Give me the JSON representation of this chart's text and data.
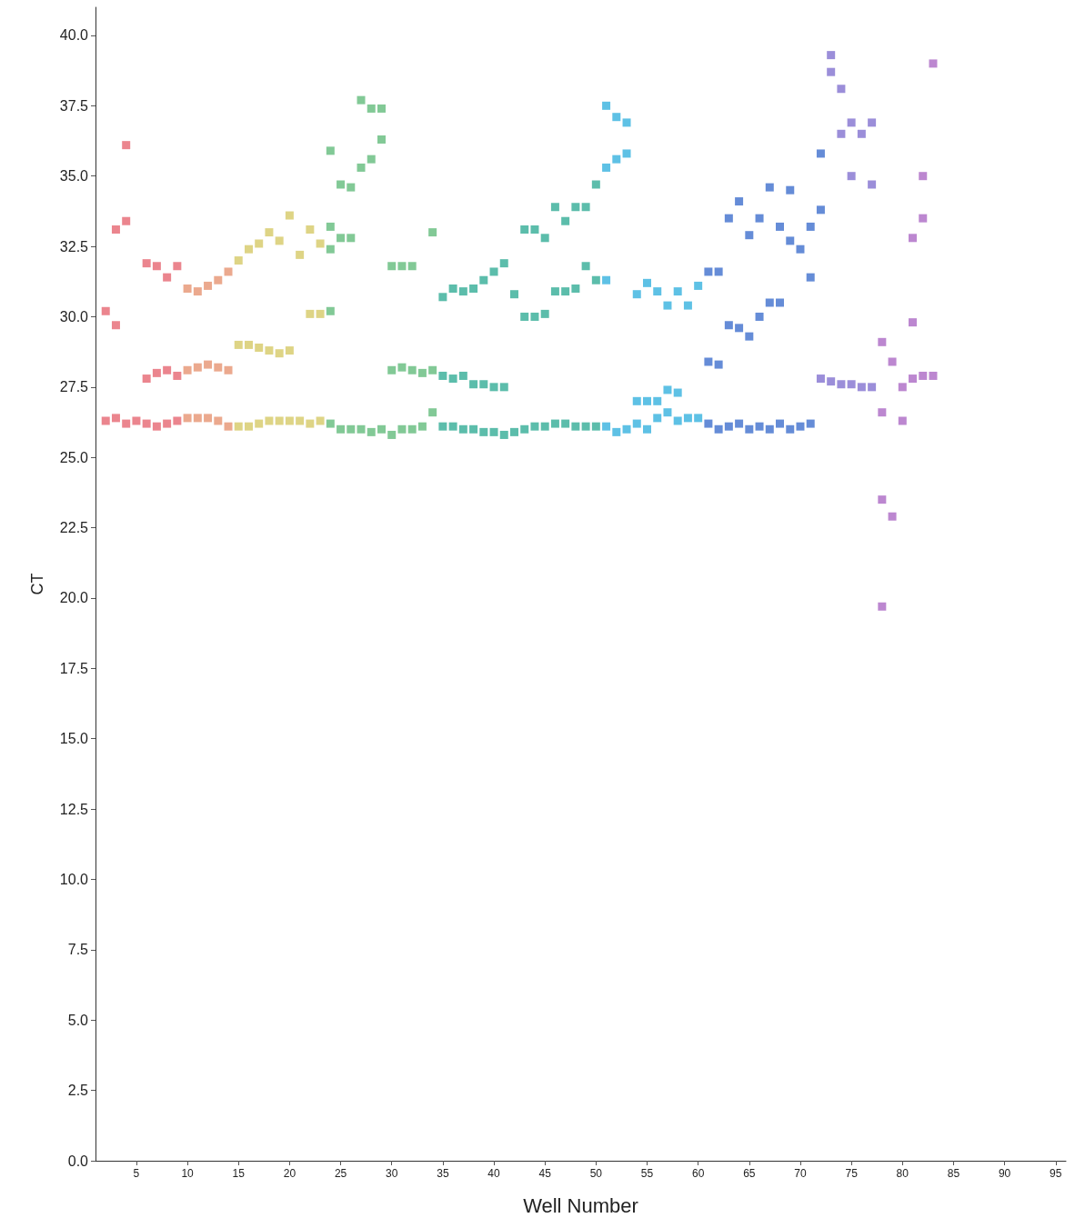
{
  "chart_data": {
    "type": "scatter",
    "xlabel": "Well Number",
    "ylabel": "CT",
    "marker": "square",
    "xlim": [
      1,
      96
    ],
    "xticks": [
      5,
      10,
      15,
      20,
      25,
      30,
      35,
      40,
      45,
      50,
      55,
      60,
      65,
      70,
      75,
      80,
      85,
      90,
      95
    ],
    "ylim": [
      0,
      41
    ],
    "yticks": [
      {
        "value": 0,
        "label": "0.0"
      },
      {
        "value": 2.5,
        "label": "2.5"
      },
      {
        "value": 5,
        "label": "5.0"
      },
      {
        "value": 7.5,
        "label": "7.5"
      },
      {
        "value": 10,
        "label": "10.0"
      },
      {
        "value": 12.5,
        "label": "12.5"
      },
      {
        "value": 15,
        "label": "15.0"
      },
      {
        "value": 17.5,
        "label": "17.5"
      },
      {
        "value": 20,
        "label": "20.0"
      },
      {
        "value": 22.5,
        "label": "22.5"
      },
      {
        "value": 25,
        "label": "25.0"
      },
      {
        "value": 27.5,
        "label": "27.5"
      },
      {
        "value": 30,
        "label": "30.0"
      },
      {
        "value": 32.5,
        "label": "32.5"
      },
      {
        "value": 35,
        "label": "35.0"
      },
      {
        "value": 37.5,
        "label": "37.5"
      },
      {
        "value": 40,
        "label": "40.0"
      }
    ],
    "series": [
      {
        "color": "#e8707a",
        "x": [
          2,
          2,
          3,
          3,
          3,
          4,
          4,
          4,
          5,
          6,
          6,
          6,
          7,
          7,
          7,
          8,
          8,
          8,
          9,
          9,
          9
        ],
        "values": [
          26.3,
          30.2,
          26.4,
          29.7,
          33.1,
          26.2,
          33.4,
          36.1,
          26.3,
          26.2,
          31.9,
          27.8,
          26.1,
          31.8,
          28.0,
          26.2,
          31.4,
          28.1,
          26.3,
          31.8,
          27.9
        ]
      },
      {
        "color": "#e89a7a",
        "x": [
          10,
          10,
          10,
          11,
          11,
          11,
          12,
          12,
          12,
          13,
          13,
          13,
          14,
          14,
          14
        ],
        "values": [
          26.4,
          31.0,
          28.1,
          26.4,
          30.9,
          28.2,
          26.4,
          31.1,
          28.3,
          26.3,
          31.3,
          28.2,
          26.1,
          31.6,
          28.1
        ]
      },
      {
        "color": "#d8cc70",
        "x": [
          15,
          15,
          15,
          16,
          16,
          16,
          17,
          17,
          17,
          18,
          18,
          18,
          19,
          19,
          19,
          20,
          20,
          20,
          21,
          21,
          22,
          22,
          22,
          23,
          23,
          23
        ],
        "values": [
          26.1,
          32.0,
          29.0,
          26.1,
          32.4,
          29.0,
          26.2,
          32.6,
          28.9,
          26.3,
          33.0,
          28.8,
          26.3,
          32.7,
          28.7,
          26.3,
          33.6,
          28.8,
          26.3,
          32.2,
          26.2,
          33.1,
          30.1,
          26.3,
          32.6,
          30.1
        ]
      },
      {
        "color": "#6cc084",
        "x": [
          24,
          24,
          24,
          24,
          24,
          25,
          25,
          25,
          26,
          26,
          26,
          27,
          27,
          27,
          28,
          28,
          28,
          29,
          29,
          29,
          30,
          30,
          30,
          31,
          31,
          31,
          32,
          32,
          32,
          33,
          33,
          34,
          34,
          34
        ],
        "values": [
          26.2,
          32.4,
          30.2,
          35.9,
          33.2,
          26.0,
          34.7,
          32.8,
          26.0,
          34.6,
          32.8,
          26.0,
          35.3,
          37.7,
          25.9,
          35.6,
          37.4,
          26.0,
          37.4,
          36.3,
          25.8,
          31.8,
          28.1,
          26.0,
          31.8,
          28.2,
          26.0,
          31.8,
          28.1,
          26.1,
          28.0,
          26.6,
          33.0,
          28.1
        ]
      },
      {
        "color": "#3fb29c",
        "x": [
          35,
          35,
          35,
          36,
          36,
          36,
          37,
          37,
          37,
          38,
          38,
          38,
          39,
          39,
          39,
          40,
          40,
          40,
          41,
          41,
          41,
          42,
          42,
          43,
          43,
          43,
          44,
          44,
          44,
          45,
          45,
          45,
          46,
          46,
          46,
          47,
          47,
          47,
          48,
          48,
          48,
          49,
          49,
          49,
          50,
          50,
          50
        ],
        "values": [
          26.1,
          30.7,
          27.9,
          26.1,
          31.0,
          27.8,
          26.0,
          30.9,
          27.9,
          26.0,
          31.0,
          27.6,
          25.9,
          31.3,
          27.6,
          25.9,
          31.6,
          27.5,
          25.8,
          31.9,
          27.5,
          25.9,
          30.8,
          26.0,
          30.0,
          33.1,
          26.1,
          30.0,
          33.1,
          26.1,
          30.1,
          32.8,
          26.2,
          33.9,
          30.9,
          26.2,
          33.4,
          30.9,
          26.1,
          33.9,
          31.0,
          26.1,
          33.9,
          31.8,
          26.1,
          34.7,
          31.3
        ]
      },
      {
        "color": "#42b6e0",
        "x": [
          51,
          51,
          51,
          51,
          52,
          52,
          52,
          53,
          53,
          53,
          54,
          54,
          54,
          55,
          55,
          55,
          56,
          56,
          56,
          57,
          57,
          57,
          58,
          58,
          58,
          59,
          59,
          60,
          60
        ],
        "values": [
          26.1,
          37.5,
          35.3,
          31.3,
          25.9,
          37.1,
          35.6,
          26.0,
          36.9,
          35.8,
          26.2,
          30.8,
          27.0,
          26.0,
          31.2,
          27.0,
          26.4,
          30.9,
          27.0,
          26.6,
          30.4,
          27.4,
          26.3,
          30.9,
          27.3,
          26.4,
          30.4,
          26.4,
          31.1
        ]
      },
      {
        "color": "#4a78d0",
        "x": [
          61,
          61,
          61,
          62,
          62,
          62,
          63,
          63,
          63,
          64,
          64,
          64,
          65,
          65,
          65,
          66,
          66,
          66,
          67,
          67,
          67,
          68,
          68,
          68,
          69,
          69,
          69,
          70,
          70,
          71,
          71,
          71,
          72,
          72
        ],
        "values": [
          26.2,
          31.6,
          28.4,
          26.0,
          28.3,
          31.6,
          26.1,
          33.5,
          29.7,
          26.2,
          34.1,
          29.6,
          26.0,
          32.9,
          29.3,
          26.1,
          33.5,
          30.0,
          26.0,
          34.6,
          30.5,
          26.2,
          33.2,
          30.5,
          26.0,
          34.5,
          32.7,
          26.1,
          32.4,
          33.2,
          31.4,
          26.2,
          33.8,
          35.8
        ]
      },
      {
        "color": "#8a7ad2",
        "x": [
          72,
          73,
          73,
          73,
          74,
          74,
          74,
          75,
          75,
          75,
          76,
          76,
          77,
          77,
          77
        ],
        "values": [
          27.8,
          39.3,
          38.7,
          27.7,
          38.1,
          36.5,
          27.6,
          36.9,
          35.0,
          27.6,
          36.5,
          27.5,
          36.9,
          34.7,
          27.5
        ]
      },
      {
        "color": "#b072c8",
        "x": [
          78,
          78,
          78,
          78,
          79,
          79,
          80,
          80,
          81,
          81,
          81,
          82,
          82,
          82,
          83,
          83
        ],
        "values": [
          29.1,
          26.6,
          23.5,
          19.7,
          28.4,
          22.9,
          27.5,
          26.3,
          29.8,
          32.8,
          27.8,
          35.0,
          33.5,
          27.9,
          39.0,
          27.9
        ]
      }
    ]
  }
}
